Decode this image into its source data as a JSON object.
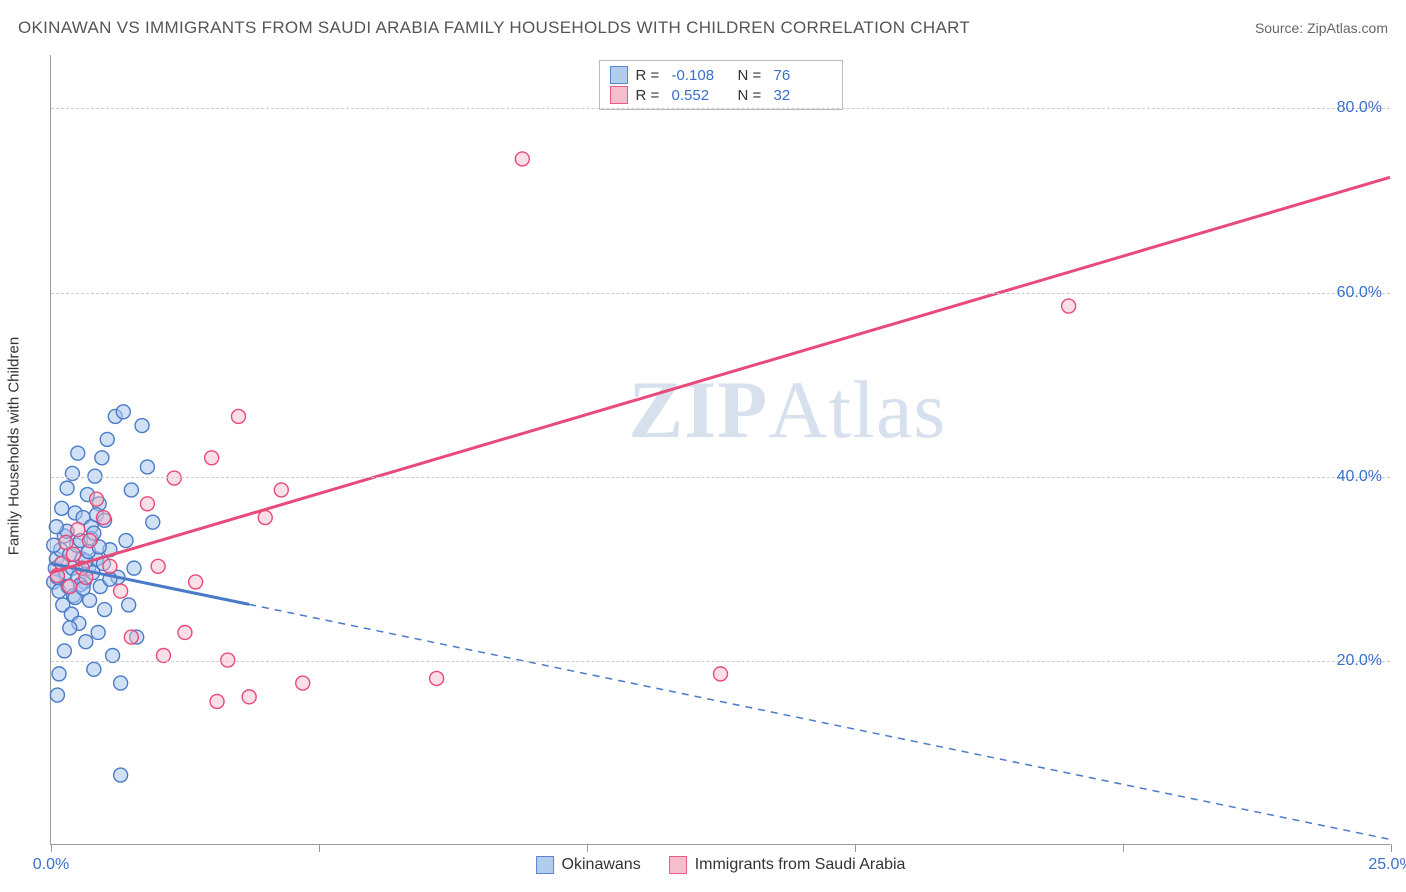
{
  "title": "OKINAWAN VS IMMIGRANTS FROM SAUDI ARABIA FAMILY HOUSEHOLDS WITH CHILDREN CORRELATION CHART",
  "source": "Source: ZipAtlas.com",
  "watermark_a": "ZIP",
  "watermark_b": "Atlas",
  "yaxis_label": "Family Households with Children",
  "chart": {
    "type": "scatter",
    "xlim": [
      0,
      25
    ],
    "ylim": [
      0,
      85.8
    ],
    "xticks": [
      0,
      5,
      10,
      15,
      20,
      25
    ],
    "xtick_labels_shown": {
      "0": "0.0%",
      "25": "25.0%"
    },
    "yticks": [
      20,
      40,
      60,
      80
    ],
    "ytick_labels": {
      "20": "20.0%",
      "40": "40.0%",
      "60": "60.0%",
      "80": "80.0%"
    },
    "grid_color": "#cccccc",
    "background_color": "#ffffff",
    "marker_radius": 7,
    "marker_stroke_width": 1.4,
    "line_width": 3,
    "series": [
      {
        "key": "okinawans",
        "label": "Okinawans",
        "fill": "#a9c7ec",
        "stroke": "#4a7bc8",
        "fill_opacity": 0.55,
        "R": "-0.108",
        "N": "76",
        "trend": {
          "x1": 0,
          "y1": 30.5,
          "x2": 25,
          "y2": 0.5,
          "solid_until_x": 3.7
        },
        "points": [
          [
            0.05,
            28.5
          ],
          [
            0.08,
            30.0
          ],
          [
            0.1,
            31.0
          ],
          [
            0.12,
            29.0
          ],
          [
            0.15,
            27.5
          ],
          [
            0.18,
            32.0
          ],
          [
            0.2,
            30.5
          ],
          [
            0.22,
            26.0
          ],
          [
            0.25,
            33.5
          ],
          [
            0.28,
            29.5
          ],
          [
            0.3,
            34.0
          ],
          [
            0.32,
            28.0
          ],
          [
            0.35,
            31.5
          ],
          [
            0.38,
            25.0
          ],
          [
            0.4,
            30.0
          ],
          [
            0.42,
            27.0
          ],
          [
            0.45,
            36.0
          ],
          [
            0.48,
            32.5
          ],
          [
            0.5,
            29.0
          ],
          [
            0.52,
            24.0
          ],
          [
            0.55,
            33.0
          ],
          [
            0.58,
            31.0
          ],
          [
            0.6,
            35.5
          ],
          [
            0.62,
            28.5
          ],
          [
            0.65,
            22.0
          ],
          [
            0.68,
            38.0
          ],
          [
            0.7,
            30.0
          ],
          [
            0.72,
            26.5
          ],
          [
            0.75,
            34.5
          ],
          [
            0.78,
            29.5
          ],
          [
            0.8,
            19.0
          ],
          [
            0.82,
            40.0
          ],
          [
            0.85,
            31.0
          ],
          [
            0.88,
            23.0
          ],
          [
            0.9,
            37.0
          ],
          [
            0.92,
            28.0
          ],
          [
            0.95,
            42.0
          ],
          [
            0.98,
            30.5
          ],
          [
            1.0,
            25.5
          ],
          [
            1.05,
            44.0
          ],
          [
            1.1,
            32.0
          ],
          [
            1.15,
            20.5
          ],
          [
            1.2,
            46.5
          ],
          [
            1.25,
            29.0
          ],
          [
            1.3,
            17.5
          ],
          [
            1.35,
            47.0
          ],
          [
            1.4,
            33.0
          ],
          [
            1.45,
            26.0
          ],
          [
            1.5,
            38.5
          ],
          [
            1.55,
            30.0
          ],
          [
            1.6,
            22.5
          ],
          [
            1.7,
            45.5
          ],
          [
            1.8,
            41.0
          ],
          [
            1.9,
            35.0
          ],
          [
            0.15,
            18.5
          ],
          [
            0.25,
            21.0
          ],
          [
            0.35,
            23.5
          ],
          [
            0.45,
            26.8
          ],
          [
            0.55,
            28.2
          ],
          [
            0.65,
            30.8
          ],
          [
            0.75,
            33.2
          ],
          [
            0.85,
            35.8
          ],
          [
            0.1,
            34.5
          ],
          [
            0.2,
            36.5
          ],
          [
            0.3,
            38.7
          ],
          [
            0.4,
            40.3
          ],
          [
            0.5,
            42.5
          ],
          [
            0.12,
            16.2
          ],
          [
            0.6,
            27.8
          ],
          [
            0.7,
            31.8
          ],
          [
            0.8,
            33.8
          ],
          [
            0.9,
            32.3
          ],
          [
            1.0,
            35.2
          ],
          [
            1.1,
            28.8
          ],
          [
            1.3,
            7.5
          ],
          [
            0.05,
            32.5
          ]
        ]
      },
      {
        "key": "saudi",
        "label": "Immigrants from Saudi Arabia",
        "fill": "#f4b8c8",
        "stroke": "#e84a7a",
        "fill_opacity": 0.45,
        "R": "0.552",
        "N": "32",
        "trend": {
          "x1": 0,
          "y1": 29.5,
          "x2": 25,
          "y2": 72.5,
          "solid_until_x": 25
        },
        "points": [
          [
            0.12,
            29.2
          ],
          [
            0.2,
            30.5
          ],
          [
            0.28,
            32.8
          ],
          [
            0.35,
            28.0
          ],
          [
            0.42,
            31.5
          ],
          [
            0.5,
            34.2
          ],
          [
            0.58,
            30.0
          ],
          [
            0.65,
            29.0
          ],
          [
            0.72,
            33.0
          ],
          [
            0.85,
            37.5
          ],
          [
            0.98,
            35.5
          ],
          [
            1.1,
            30.2
          ],
          [
            1.3,
            27.5
          ],
          [
            1.5,
            22.5
          ],
          [
            1.8,
            37.0
          ],
          [
            2.0,
            30.2
          ],
          [
            2.3,
            39.8
          ],
          [
            2.5,
            23.0
          ],
          [
            2.7,
            28.5
          ],
          [
            3.0,
            42.0
          ],
          [
            3.3,
            20.0
          ],
          [
            3.5,
            46.5
          ],
          [
            3.7,
            16.0
          ],
          [
            4.0,
            35.5
          ],
          [
            4.3,
            38.5
          ],
          [
            4.7,
            17.5
          ],
          [
            2.1,
            20.5
          ],
          [
            3.1,
            15.5
          ],
          [
            7.2,
            18.0
          ],
          [
            8.8,
            74.5
          ],
          [
            12.5,
            18.5
          ],
          [
            19.0,
            58.5
          ]
        ]
      }
    ]
  }
}
